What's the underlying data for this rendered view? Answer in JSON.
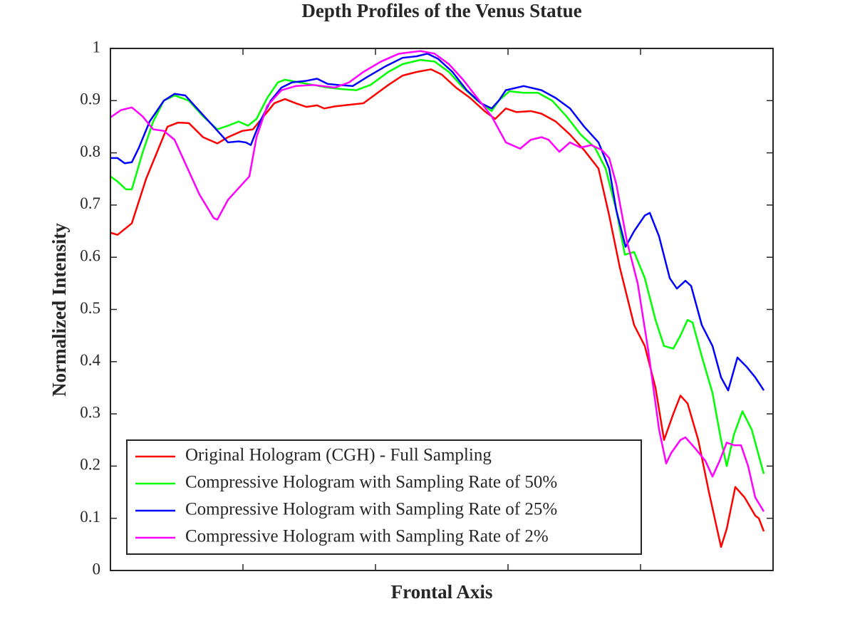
{
  "chart_data": {
    "type": "line",
    "title": "Depth Profiles of the Venus Statue",
    "x_label": "Frontal Axis",
    "y_label": "Normalized Intensity",
    "xlim": [
      0,
      930
    ],
    "xticks": [
      0,
      186,
      372,
      558,
      744,
      930
    ],
    "show_xtick_labels": false,
    "ylim": [
      0,
      1
    ],
    "yticks": [
      0,
      0.1,
      0.2,
      0.3,
      0.4,
      0.5,
      0.6,
      0.7,
      0.8,
      0.9,
      1
    ],
    "grid": false,
    "legend": "lower left",
    "series": [
      {
        "name": "Original Hologram (CGH) - Full Sampling",
        "color": "#ff0000",
        "x": [
          0,
          10,
          30,
          50,
          65,
          80,
          95,
          110,
          130,
          150,
          165,
          185,
          200,
          215,
          230,
          245,
          260,
          275,
          290,
          300,
          315,
          335,
          355,
          370,
          390,
          410,
          430,
          450,
          465,
          485,
          505,
          525,
          540,
          555,
          570,
          590,
          605,
          625,
          645,
          665,
          685,
          700,
          715,
          735,
          750,
          765,
          777,
          790,
          800,
          810,
          825,
          840,
          857,
          865,
          877,
          890,
          905,
          910,
          917
        ],
        "values": [
          0.647,
          0.643,
          0.665,
          0.75,
          0.8,
          0.85,
          0.858,
          0.857,
          0.83,
          0.818,
          0.83,
          0.842,
          0.845,
          0.87,
          0.895,
          0.903,
          0.895,
          0.888,
          0.891,
          0.885,
          0.889,
          0.892,
          0.895,
          0.91,
          0.93,
          0.948,
          0.955,
          0.96,
          0.95,
          0.925,
          0.905,
          0.88,
          0.865,
          0.885,
          0.878,
          0.88,
          0.875,
          0.86,
          0.835,
          0.805,
          0.77,
          0.68,
          0.58,
          0.47,
          0.43,
          0.35,
          0.25,
          0.3,
          0.335,
          0.32,
          0.25,
          0.15,
          0.045,
          0.08,
          0.16,
          0.14,
          0.105,
          0.1,
          0.075
        ]
      },
      {
        "name": "Compressive Hologram with Sampling Rate of 50%",
        "color": "#00ff00",
        "x": [
          0,
          10,
          22,
          30,
          45,
          60,
          75,
          90,
          110,
          130,
          150,
          165,
          180,
          193,
          205,
          220,
          235,
          245,
          265,
          285,
          305,
          325,
          345,
          365,
          390,
          410,
          435,
          455,
          475,
          495,
          515,
          535,
          545,
          560,
          580,
          600,
          620,
          640,
          660,
          680,
          695,
          710,
          722,
          735,
          750,
          765,
          777,
          790,
          800,
          810,
          817,
          830,
          845,
          857,
          865,
          875,
          887,
          900,
          910,
          917
        ],
        "values": [
          0.755,
          0.745,
          0.73,
          0.73,
          0.8,
          0.86,
          0.9,
          0.91,
          0.9,
          0.87,
          0.845,
          0.852,
          0.86,
          0.852,
          0.865,
          0.905,
          0.935,
          0.94,
          0.935,
          0.93,
          0.925,
          0.922,
          0.92,
          0.93,
          0.955,
          0.97,
          0.978,
          0.975,
          0.955,
          0.925,
          0.9,
          0.88,
          0.9,
          0.918,
          0.915,
          0.915,
          0.9,
          0.87,
          0.835,
          0.81,
          0.77,
          0.69,
          0.605,
          0.61,
          0.56,
          0.48,
          0.43,
          0.425,
          0.45,
          0.48,
          0.475,
          0.41,
          0.34,
          0.25,
          0.2,
          0.26,
          0.305,
          0.27,
          0.22,
          0.185
        ]
      },
      {
        "name": "Compressive Hologram with Sampling Rate of 25%",
        "color": "#0000ff",
        "x": [
          0,
          10,
          20,
          30,
          40,
          55,
          75,
          90,
          105,
          125,
          145,
          165,
          180,
          190,
          197,
          210,
          225,
          240,
          255,
          275,
          290,
          305,
          320,
          340,
          360,
          385,
          410,
          430,
          445,
          460,
          480,
          500,
          520,
          535,
          545,
          555,
          580,
          605,
          625,
          645,
          665,
          685,
          700,
          710,
          723,
          735,
          750,
          757,
          770,
          785,
          795,
          807,
          815,
          830,
          845,
          857,
          867,
          880,
          893,
          905,
          917
        ],
        "values": [
          0.79,
          0.79,
          0.78,
          0.782,
          0.81,
          0.86,
          0.9,
          0.913,
          0.91,
          0.88,
          0.85,
          0.82,
          0.822,
          0.82,
          0.815,
          0.86,
          0.9,
          0.925,
          0.935,
          0.938,
          0.942,
          0.932,
          0.93,
          0.928,
          0.945,
          0.965,
          0.982,
          0.985,
          0.99,
          0.98,
          0.955,
          0.92,
          0.895,
          0.885,
          0.9,
          0.92,
          0.928,
          0.92,
          0.905,
          0.885,
          0.85,
          0.82,
          0.77,
          0.69,
          0.62,
          0.65,
          0.68,
          0.685,
          0.64,
          0.56,
          0.54,
          0.555,
          0.545,
          0.47,
          0.43,
          0.37,
          0.345,
          0.408,
          0.39,
          0.37,
          0.345
        ]
      },
      {
        "name": "Compressive Hologram with Sampling Rate of 2%",
        "color": "#ff00ff",
        "x": [
          0,
          15,
          30,
          45,
          60,
          75,
          90,
          105,
          125,
          145,
          150,
          165,
          185,
          195,
          205,
          220,
          240,
          260,
          285,
          315,
          335,
          355,
          380,
          405,
          435,
          455,
          475,
          495,
          515,
          535,
          555,
          575,
          590,
          605,
          615,
          630,
          645,
          660,
          675,
          690,
          700,
          710,
          725,
          740,
          755,
          770,
          780,
          787,
          800,
          807,
          820,
          835,
          845,
          855,
          865,
          875,
          885,
          895,
          905,
          917
        ],
        "values": [
          0.868,
          0.882,
          0.887,
          0.87,
          0.845,
          0.842,
          0.825,
          0.78,
          0.72,
          0.675,
          0.672,
          0.71,
          0.74,
          0.755,
          0.83,
          0.89,
          0.92,
          0.928,
          0.93,
          0.925,
          0.935,
          0.955,
          0.975,
          0.99,
          0.995,
          0.99,
          0.97,
          0.94,
          0.905,
          0.87,
          0.82,
          0.808,
          0.825,
          0.83,
          0.825,
          0.802,
          0.82,
          0.81,
          0.815,
          0.805,
          0.79,
          0.74,
          0.63,
          0.55,
          0.42,
          0.27,
          0.205,
          0.225,
          0.25,
          0.255,
          0.235,
          0.21,
          0.18,
          0.21,
          0.245,
          0.24,
          0.24,
          0.2,
          0.14,
          0.113
        ]
      }
    ]
  }
}
